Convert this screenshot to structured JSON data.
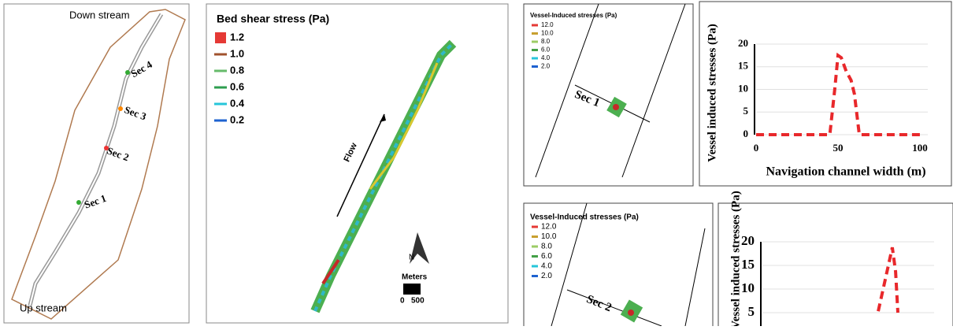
{
  "overview_map": {
    "downstream": "Down stream",
    "upstream": "Up stream",
    "sections": [
      "Sec 1",
      "Sec 2",
      "Sec 3",
      "Sec 4"
    ]
  },
  "shear_map": {
    "title": "Bed shear stress (Pa)",
    "legend": [
      "1.2",
      "1.0",
      "0.8",
      "0.6",
      "0.4",
      "0.2"
    ],
    "flow": "Flow",
    "north": "N",
    "scale_title": "Meters",
    "scale_labels": [
      "0",
      "500"
    ]
  },
  "section_maps": [
    {
      "legend_title": "Vessel-Induced stresses (Pa)",
      "legend": [
        "12.0",
        "10.0",
        "8.0",
        "6.0",
        "4.0",
        "2.0"
      ],
      "section": "Sec 1"
    },
    {
      "legend_title": "Vessel-Induced stresses (Pa)",
      "legend": [
        "12.0",
        "10.0",
        "8.0",
        "6.0",
        "4.0",
        "2.0"
      ],
      "section": "Sec 2"
    }
  ],
  "chart_data": [
    {
      "type": "line",
      "y_label": "Vessel induced stresses (Pa)",
      "x_label": "Navigation channel width (m)",
      "xlim": [
        0,
        100
      ],
      "xticks": [
        0,
        50,
        100
      ],
      "ylim": [
        0,
        20
      ],
      "yticks": [
        0,
        5,
        10,
        15,
        20
      ],
      "grid": true,
      "color": "#e8282b",
      "x": [
        0,
        45,
        48,
        50,
        52,
        55,
        58,
        60,
        63,
        100
      ],
      "values": [
        0,
        0,
        10,
        17.5,
        17,
        14,
        12,
        9,
        0,
        0
      ]
    },
    {
      "type": "line",
      "y_label": "Vessel induced stresses (Pa)",
      "xlim": [
        0,
        100
      ],
      "ylim": [
        0,
        20
      ],
      "yticks": [
        5,
        10,
        15,
        20
      ],
      "grid": true,
      "color": "#e8282b",
      "x": [
        70.7,
        75.5,
        79.3,
        81.3,
        82.7
      ],
      "values": [
        5.3,
        12.8,
        18.8,
        13.7,
        5
      ]
    }
  ]
}
